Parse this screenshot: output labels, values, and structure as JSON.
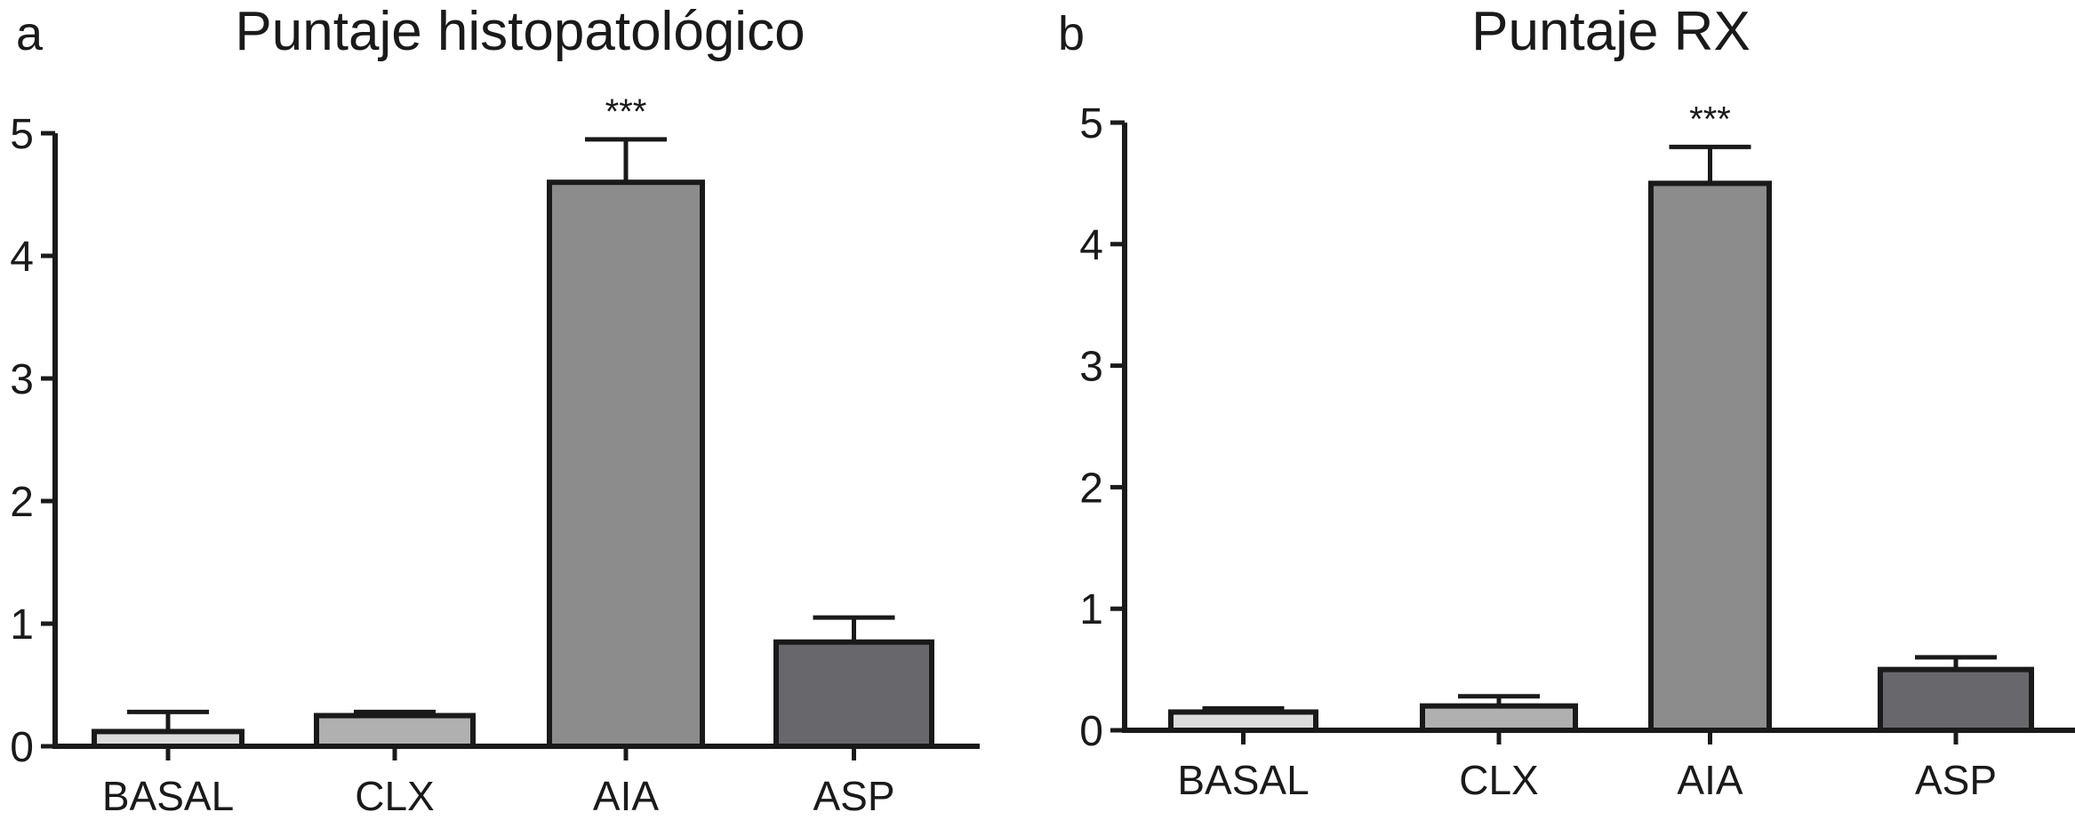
{
  "chart_data": [
    {
      "panel": "a",
      "type": "bar",
      "title": "Puntaje histopatológico",
      "xlabel": "",
      "ylabel": "",
      "ylim": [
        0,
        5
      ],
      "yticks": [
        0,
        1,
        2,
        3,
        4,
        5
      ],
      "categories": [
        "BASAL",
        "CLX",
        "AIA",
        "ASP"
      ],
      "values": [
        0.12,
        0.25,
        4.6,
        0.85
      ],
      "errors": [
        0.16,
        0.03,
        0.35,
        0.2
      ],
      "colors": [
        "#dcdcdc",
        "#b0b0b0",
        "#8c8c8c",
        "#68686c"
      ],
      "annotations": [
        "",
        "",
        "***",
        ""
      ],
      "grid": false,
      "legend": "none"
    },
    {
      "panel": "b",
      "type": "bar",
      "title": "Puntaje RX",
      "xlabel": "",
      "ylabel": "",
      "ylim": [
        0,
        5
      ],
      "yticks": [
        0,
        1,
        2,
        3,
        4,
        5
      ],
      "categories": [
        "BASAL",
        "CLX",
        "AIA",
        "ASP"
      ],
      "values": [
        0.15,
        0.2,
        4.5,
        0.5
      ],
      "errors": [
        0.03,
        0.08,
        0.3,
        0.1
      ],
      "colors": [
        "#dcdcdc",
        "#b0b0b0",
        "#8c8c8c",
        "#68686c"
      ],
      "annotations": [
        "",
        "",
        "***",
        ""
      ],
      "grid": false,
      "legend": "none"
    }
  ]
}
